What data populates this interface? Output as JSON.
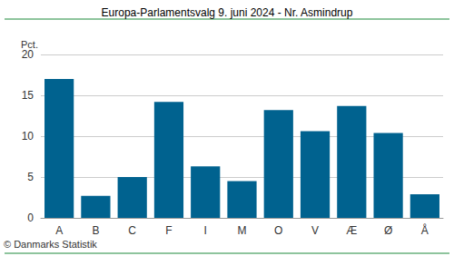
{
  "chart_data": {
    "type": "bar",
    "title": "Europa-Parlamentsvalg 9. juni 2024 - Nr. Asmindrup",
    "y_label": "Pct.",
    "footer": "© Danmarks Statistik",
    "categories": [
      "A",
      "B",
      "C",
      "F",
      "I",
      "M",
      "O",
      "V",
      "Æ",
      "Ø",
      "Å"
    ],
    "values": [
      17.0,
      2.7,
      5.0,
      14.2,
      6.3,
      4.5,
      13.2,
      10.6,
      13.7,
      10.4,
      2.9
    ],
    "color": "#00628f",
    "ylim": [
      0,
      20
    ],
    "yticks": [
      0,
      5,
      10,
      15,
      20
    ],
    "grid": true
  }
}
